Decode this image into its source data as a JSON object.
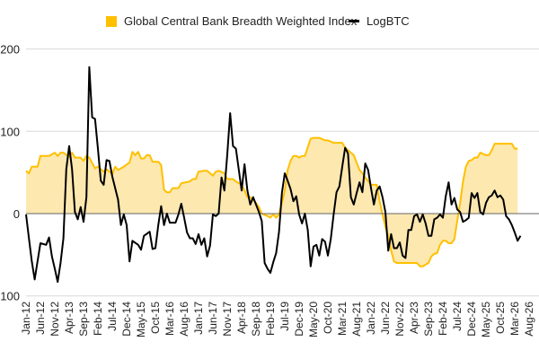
{
  "chart_data": {
    "type": "area",
    "title": "",
    "xlabel": "",
    "ylabel": "",
    "ylim": [
      -100,
      200
    ],
    "yticks": [
      200,
      100,
      0,
      -100
    ],
    "grid": true,
    "legend_position": "top",
    "xticks": [
      "Jan-12",
      "Jun-12",
      "Nov-12",
      "Apr-13",
      "Sep-13",
      "Feb-14",
      "Jul-14",
      "Dec-14",
      "May-15",
      "Oct-15",
      "Mar-16",
      "Aug-16",
      "Jan-17",
      "Jun-17",
      "Nov-17",
      "Apr-18",
      "Sep-18",
      "Feb-19",
      "Jul-19",
      "Dec-19",
      "May-20",
      "Oct-20",
      "Mar-21",
      "Aug-21",
      "Jan-22",
      "Jun-22",
      "Nov-22",
      "Apr-23",
      "Sep-23",
      "Feb-24",
      "Jul-24",
      "Dec-24",
      "May-25",
      "Oct-25",
      "Mar-26",
      "Aug-26"
    ],
    "xrange": [
      "2012-01",
      "2026-08"
    ],
    "series": [
      {
        "name": "Global Central Bank Breadth Weighted Index",
        "type": "area",
        "color": "#FFC000",
        "fill": "#FDE8B0",
        "points": [
          [
            "2012-01",
            52
          ],
          [
            "2012-02",
            49
          ],
          [
            "2012-03",
            57
          ],
          [
            "2012-05",
            57
          ],
          [
            "2012-06",
            70
          ],
          [
            "2012-09",
            70
          ],
          [
            "2012-11",
            74
          ],
          [
            "2012-12",
            70
          ],
          [
            "2013-01",
            74
          ],
          [
            "2013-02",
            74
          ],
          [
            "2013-04",
            69
          ],
          [
            "2013-05",
            74
          ],
          [
            "2013-06",
            68
          ],
          [
            "2013-08",
            68
          ],
          [
            "2013-09",
            64
          ],
          [
            "2013-10",
            70
          ],
          [
            "2013-11",
            68
          ],
          [
            "2014-01",
            55
          ],
          [
            "2014-02",
            57
          ],
          [
            "2014-04",
            51
          ],
          [
            "2014-05",
            54
          ],
          [
            "2014-07",
            48
          ],
          [
            "2014-08",
            57
          ],
          [
            "2014-09",
            53
          ],
          [
            "2014-11",
            57
          ],
          [
            "2015-01",
            62
          ],
          [
            "2015-02",
            75
          ],
          [
            "2015-03",
            71
          ],
          [
            "2015-04",
            75
          ],
          [
            "2015-05",
            67
          ],
          [
            "2015-06",
            67
          ],
          [
            "2015-07",
            71
          ],
          [
            "2015-08",
            71
          ],
          [
            "2015-09",
            63
          ],
          [
            "2015-11",
            63
          ],
          [
            "2015-12",
            59
          ],
          [
            "2016-01",
            29
          ],
          [
            "2016-02",
            26
          ],
          [
            "2016-03",
            26
          ],
          [
            "2016-04",
            31
          ],
          [
            "2016-06",
            31
          ],
          [
            "2016-07",
            37
          ],
          [
            "2016-10",
            39
          ],
          [
            "2016-11",
            42
          ],
          [
            "2016-12",
            42
          ],
          [
            "2017-01",
            51
          ],
          [
            "2017-03",
            52
          ],
          [
            "2017-04",
            52
          ],
          [
            "2017-06",
            46
          ],
          [
            "2017-07",
            51
          ],
          [
            "2017-08",
            52
          ],
          [
            "2017-10",
            49
          ],
          [
            "2017-11",
            42
          ],
          [
            "2018-01",
            42
          ],
          [
            "2018-02",
            39
          ],
          [
            "2018-04",
            35
          ],
          [
            "2018-05",
            28
          ],
          [
            "2018-06",
            20
          ],
          [
            "2018-07",
            20
          ],
          [
            "2018-09",
            13
          ],
          [
            "2018-10",
            8
          ],
          [
            "2018-11",
            0
          ],
          [
            "2019-01",
            -3
          ],
          [
            "2019-02",
            -5
          ],
          [
            "2019-03",
            -1
          ],
          [
            "2019-04",
            -5
          ],
          [
            "2019-05",
            -1
          ],
          [
            "2019-06",
            13
          ],
          [
            "2019-07",
            28
          ],
          [
            "2019-08",
            53
          ],
          [
            "2019-09",
            64
          ],
          [
            "2019-10",
            70
          ],
          [
            "2019-11",
            70
          ],
          [
            "2019-12",
            68
          ],
          [
            "2020-01",
            70
          ],
          [
            "2020-02",
            70
          ],
          [
            "2020-04",
            91
          ],
          [
            "2020-05",
            92
          ],
          [
            "2020-07",
            92
          ],
          [
            "2020-09",
            89
          ],
          [
            "2020-10",
            89
          ],
          [
            "2020-12",
            86
          ],
          [
            "2021-03",
            86
          ],
          [
            "2021-04",
            80
          ],
          [
            "2021-05",
            77
          ],
          [
            "2021-07",
            71
          ],
          [
            "2021-08",
            62
          ],
          [
            "2021-09",
            53
          ],
          [
            "2021-10",
            49
          ],
          [
            "2021-11",
            44
          ],
          [
            "2022-01",
            35
          ],
          [
            "2022-03",
            35
          ],
          [
            "2022-04",
            15
          ],
          [
            "2022-05",
            -1
          ],
          [
            "2022-06",
            -16
          ],
          [
            "2022-07",
            -27
          ],
          [
            "2022-08",
            -45
          ],
          [
            "2022-09",
            -58
          ],
          [
            "2022-10",
            -60
          ],
          [
            "2023-05",
            -60
          ],
          [
            "2023-06",
            -64
          ],
          [
            "2023-07",
            -64
          ],
          [
            "2023-09",
            -60
          ],
          [
            "2023-10",
            -52
          ],
          [
            "2023-11",
            -49
          ],
          [
            "2023-12",
            -48
          ],
          [
            "2024-01",
            -38
          ],
          [
            "2024-02",
            -33
          ],
          [
            "2024-03",
            -33
          ],
          [
            "2024-04",
            -36
          ],
          [
            "2024-05",
            -36
          ],
          [
            "2024-06",
            -31
          ],
          [
            "2024-07",
            -9
          ],
          [
            "2024-08",
            13
          ],
          [
            "2024-09",
            39
          ],
          [
            "2024-10",
            57
          ],
          [
            "2024-11",
            64
          ],
          [
            "2024-12",
            65
          ],
          [
            "2025-01",
            68
          ],
          [
            "2025-02",
            68
          ],
          [
            "2025-03",
            74
          ],
          [
            "2025-05",
            71
          ],
          [
            "2025-06",
            71
          ],
          [
            "2025-07",
            77
          ],
          [
            "2025-08",
            85
          ],
          [
            "2025-09",
            85
          ],
          [
            "2025-11",
            85
          ],
          [
            "2026-02",
            85
          ],
          [
            "2026-03",
            79
          ],
          [
            "2026-04",
            79
          ]
        ]
      },
      {
        "name": "LogBTC",
        "type": "line",
        "color": "#000000",
        "points": [
          [
            "2012-01",
            -1
          ],
          [
            "2012-02",
            -30
          ],
          [
            "2012-03",
            -58
          ],
          [
            "2012-04",
            -80
          ],
          [
            "2012-06",
            -36
          ],
          [
            "2012-08",
            -38
          ],
          [
            "2012-09",
            -29
          ],
          [
            "2012-10",
            -52
          ],
          [
            "2012-11",
            -67
          ],
          [
            "2012-12",
            -83
          ],
          [
            "2013-01",
            -60
          ],
          [
            "2013-02",
            -30
          ],
          [
            "2013-03",
            54
          ],
          [
            "2013-04",
            82
          ],
          [
            "2013-05",
            54
          ],
          [
            "2013-06",
            2
          ],
          [
            "2013-07",
            -7
          ],
          [
            "2013-08",
            8
          ],
          [
            "2013-09",
            -10
          ],
          [
            "2013-10",
            20
          ],
          [
            "2013-11",
            178
          ],
          [
            "2013-12",
            117
          ],
          [
            "2014-01",
            115
          ],
          [
            "2014-02",
            79
          ],
          [
            "2014-03",
            40
          ],
          [
            "2014-04",
            35
          ],
          [
            "2014-05",
            65
          ],
          [
            "2014-06",
            64
          ],
          [
            "2014-07",
            45
          ],
          [
            "2014-09",
            17
          ],
          [
            "2014-10",
            -14
          ],
          [
            "2014-11",
            -1
          ],
          [
            "2014-12",
            -14
          ],
          [
            "2015-01",
            -58
          ],
          [
            "2015-02",
            -33
          ],
          [
            "2015-04",
            -38
          ],
          [
            "2015-05",
            -44
          ],
          [
            "2015-06",
            -27
          ],
          [
            "2015-08",
            -22
          ],
          [
            "2015-09",
            -43
          ],
          [
            "2015-10",
            -42
          ],
          [
            "2015-11",
            -14
          ],
          [
            "2015-12",
            9
          ],
          [
            "2016-01",
            -14
          ],
          [
            "2016-02",
            0
          ],
          [
            "2016-03",
            -11
          ],
          [
            "2016-05",
            -11
          ],
          [
            "2016-06",
            -1
          ],
          [
            "2016-07",
            12
          ],
          [
            "2016-08",
            -5
          ],
          [
            "2016-09",
            -23
          ],
          [
            "2016-10",
            -30
          ],
          [
            "2016-11",
            -30
          ],
          [
            "2016-12",
            -37
          ],
          [
            "2017-01",
            -25
          ],
          [
            "2017-02",
            -38
          ],
          [
            "2017-03",
            -30
          ],
          [
            "2017-04",
            -52
          ],
          [
            "2017-05",
            -39
          ],
          [
            "2017-06",
            -1
          ],
          [
            "2017-07",
            -3
          ],
          [
            "2017-08",
            0
          ],
          [
            "2017-09",
            44
          ],
          [
            "2017-10",
            28
          ],
          [
            "2017-11",
            72
          ],
          [
            "2017-12",
            122
          ],
          [
            "2018-01",
            82
          ],
          [
            "2018-02",
            79
          ],
          [
            "2018-04",
            28
          ],
          [
            "2018-05",
            60
          ],
          [
            "2018-06",
            28
          ],
          [
            "2018-07",
            11
          ],
          [
            "2018-08",
            20
          ],
          [
            "2018-10",
            2
          ],
          [
            "2018-11",
            -9
          ],
          [
            "2018-12",
            -60
          ],
          [
            "2019-01",
            -67
          ],
          [
            "2019-02",
            -72
          ],
          [
            "2019-03",
            -59
          ],
          [
            "2019-04",
            -48
          ],
          [
            "2019-05",
            -22
          ],
          [
            "2019-06",
            25
          ],
          [
            "2019-07",
            49
          ],
          [
            "2019-08",
            40
          ],
          [
            "2019-09",
            30
          ],
          [
            "2019-10",
            15
          ],
          [
            "2019-11",
            21
          ],
          [
            "2019-12",
            -1
          ],
          [
            "2020-01",
            -12
          ],
          [
            "2020-02",
            0
          ],
          [
            "2020-03",
            -20
          ],
          [
            "2020-04",
            -64
          ],
          [
            "2020-05",
            -40
          ],
          [
            "2020-06",
            -38
          ],
          [
            "2020-07",
            -51
          ],
          [
            "2020-08",
            -31
          ],
          [
            "2020-09",
            -34
          ],
          [
            "2020-10",
            -51
          ],
          [
            "2020-11",
            -31
          ],
          [
            "2020-12",
            -1
          ],
          [
            "2021-01",
            26
          ],
          [
            "2021-02",
            33
          ],
          [
            "2021-03",
            57
          ],
          [
            "2021-04",
            80
          ],
          [
            "2021-05",
            73
          ],
          [
            "2021-06",
            20
          ],
          [
            "2021-07",
            11
          ],
          [
            "2021-08",
            25
          ],
          [
            "2021-09",
            38
          ],
          [
            "2021-10",
            26
          ],
          [
            "2021-11",
            61
          ],
          [
            "2021-12",
            53
          ],
          [
            "2022-01",
            31
          ],
          [
            "2022-02",
            11
          ],
          [
            "2022-03",
            28
          ],
          [
            "2022-04",
            33
          ],
          [
            "2022-05",
            20
          ],
          [
            "2022-06",
            2
          ],
          [
            "2022-07",
            -45
          ],
          [
            "2022-08",
            -25
          ],
          [
            "2022-09",
            -42
          ],
          [
            "2022-10",
            -42
          ],
          [
            "2022-11",
            -35
          ],
          [
            "2022-12",
            -51
          ],
          [
            "2023-01",
            -54
          ],
          [
            "2023-02",
            -20
          ],
          [
            "2023-03",
            -20
          ],
          [
            "2023-04",
            -3
          ],
          [
            "2023-05",
            -1
          ],
          [
            "2023-06",
            -10
          ],
          [
            "2023-07",
            -1
          ],
          [
            "2023-08",
            -12
          ],
          [
            "2023-09",
            -27
          ],
          [
            "2023-10",
            -27
          ],
          [
            "2023-11",
            -7
          ],
          [
            "2023-12",
            -5
          ],
          [
            "2024-01",
            -1
          ],
          [
            "2024-02",
            -5
          ],
          [
            "2024-03",
            21
          ],
          [
            "2024-04",
            38
          ],
          [
            "2024-05",
            11
          ],
          [
            "2024-06",
            19
          ],
          [
            "2024-07",
            5
          ],
          [
            "2024-08",
            2
          ],
          [
            "2024-09",
            -10
          ],
          [
            "2024-10",
            -8
          ],
          [
            "2024-11",
            -5
          ],
          [
            "2024-12",
            25
          ],
          [
            "2025-01",
            19
          ],
          [
            "2025-02",
            25
          ],
          [
            "2025-03",
            2
          ],
          [
            "2025-04",
            -1
          ],
          [
            "2025-05",
            13
          ],
          [
            "2025-06",
            20
          ],
          [
            "2025-07",
            22
          ],
          [
            "2025-08",
            28
          ],
          [
            "2025-09",
            20
          ],
          [
            "2025-10",
            22
          ],
          [
            "2025-11",
            17
          ],
          [
            "2025-12",
            -3
          ],
          [
            "2026-01",
            -7
          ],
          [
            "2026-02",
            -14
          ],
          [
            "2026-03",
            -23
          ],
          [
            "2026-04",
            -33
          ],
          [
            "2026-05",
            -27
          ]
        ]
      }
    ]
  }
}
